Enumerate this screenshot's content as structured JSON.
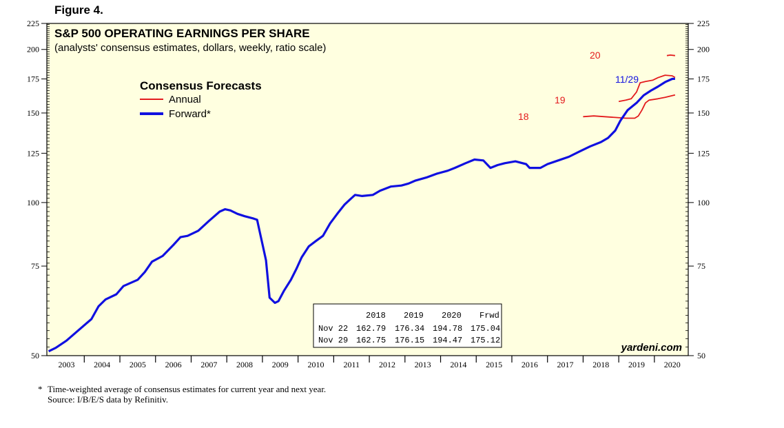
{
  "figure_label": "Figure 4.",
  "footnote": {
    "star_line": "Time-weighted average of consensus estimates for current year and next year.",
    "star": "*",
    "source": "Source: I/B/E/S data by Refinitiv."
  },
  "brand": "yardeni.com",
  "colors": {
    "annual": "#e31a1c",
    "forward": "#1010e0",
    "plot_bg": "#ffffe0"
  },
  "chart_data": {
    "type": "line",
    "title": "S&P 500 OPERATING EARNINGS PER SHARE",
    "subtitle": "(analysts' consensus estimates, dollars, weekly, ratio scale)",
    "y_scale": "log",
    "ylim": [
      50,
      225
    ],
    "y_ticks": [
      50,
      75,
      100,
      125,
      150,
      175,
      200,
      225
    ],
    "xlim": [
      2002.95,
      2020.95
    ],
    "x_tick_labels": [
      "2003",
      "2004",
      "2005",
      "2006",
      "2007",
      "2008",
      "2009",
      "2010",
      "2011",
      "2012",
      "2013",
      "2014",
      "2015",
      "2016",
      "2017",
      "2018",
      "2019",
      "2020"
    ],
    "legend": {
      "title": "Consensus Forecasts",
      "position": "top-left",
      "entries": [
        "Annual",
        "Forward*"
      ]
    },
    "series": [
      {
        "name": "Forward*",
        "color": "#1010e0",
        "points": [
          [
            2003.0,
            51.0
          ],
          [
            2003.2,
            51.8
          ],
          [
            2003.5,
            53.5
          ],
          [
            2003.8,
            55.8
          ],
          [
            2004.2,
            59
          ],
          [
            2004.4,
            62.5
          ],
          [
            2004.6,
            64.5
          ],
          [
            2004.9,
            66
          ],
          [
            2005.1,
            68.5
          ],
          [
            2005.5,
            70.5
          ],
          [
            2005.7,
            73
          ],
          [
            2005.9,
            76.5
          ],
          [
            2006.2,
            78.5
          ],
          [
            2006.5,
            82.5
          ],
          [
            2006.7,
            85.5
          ],
          [
            2006.9,
            86
          ],
          [
            2007.2,
            88
          ],
          [
            2007.5,
            92
          ],
          [
            2007.8,
            96
          ],
          [
            2007.95,
            97
          ],
          [
            2008.1,
            96.5
          ],
          [
            2008.3,
            95
          ],
          [
            2008.5,
            94
          ],
          [
            2008.75,
            93
          ],
          [
            2008.85,
            92.5
          ],
          [
            2008.95,
            86
          ],
          [
            2009.1,
            77
          ],
          [
            2009.2,
            65
          ],
          [
            2009.35,
            63.5
          ],
          [
            2009.45,
            64
          ],
          [
            2009.6,
            67
          ],
          [
            2009.8,
            70.5
          ],
          [
            2009.95,
            74
          ],
          [
            2010.1,
            78
          ],
          [
            2010.3,
            82
          ],
          [
            2010.5,
            84
          ],
          [
            2010.7,
            86
          ],
          [
            2010.9,
            91
          ],
          [
            2011.1,
            95
          ],
          [
            2011.3,
            99
          ],
          [
            2011.5,
            102
          ],
          [
            2011.6,
            103.5
          ],
          [
            2011.8,
            103
          ],
          [
            2012.1,
            103.5
          ],
          [
            2012.3,
            105.5
          ],
          [
            2012.6,
            107.5
          ],
          [
            2012.9,
            108
          ],
          [
            2013.1,
            109
          ],
          [
            2013.3,
            110.5
          ],
          [
            2013.6,
            112
          ],
          [
            2013.9,
            114
          ],
          [
            2014.2,
            115.5
          ],
          [
            2014.4,
            117
          ],
          [
            2014.7,
            119.5
          ],
          [
            2014.95,
            121.5
          ],
          [
            2015.2,
            121
          ],
          [
            2015.4,
            117
          ],
          [
            2015.6,
            118.5
          ],
          [
            2015.8,
            119.5
          ],
          [
            2016.1,
            120.5
          ],
          [
            2016.4,
            119
          ],
          [
            2016.5,
            117
          ],
          [
            2016.8,
            117
          ],
          [
            2017.0,
            119
          ],
          [
            2017.3,
            121
          ],
          [
            2017.6,
            123
          ],
          [
            2017.9,
            126
          ],
          [
            2018.2,
            129
          ],
          [
            2018.5,
            131.5
          ],
          [
            2018.7,
            134
          ],
          [
            2018.9,
            138.5
          ],
          [
            2019.05,
            145
          ],
          [
            2019.25,
            152
          ],
          [
            2019.5,
            157
          ],
          [
            2019.7,
            162.5
          ],
          [
            2019.9,
            166
          ],
          [
            2020.1,
            169
          ],
          [
            2020.3,
            172.5
          ],
          [
            2020.5,
            175
          ],
          [
            2020.58,
            175.12
          ]
        ]
      },
      {
        "name": "Annual",
        "color": "#e31a1c",
        "segments": [
          {
            "label": "18",
            "points": [
              [
                2018.0,
                147.5
              ],
              [
                2018.3,
                148
              ],
              [
                2018.6,
                147.5
              ],
              [
                2018.9,
                147
              ],
              [
                2019.2,
                146.5
              ],
              [
                2019.45,
                146.5
              ],
              [
                2019.55,
                148
              ],
              [
                2019.65,
                152
              ],
              [
                2019.75,
                157
              ],
              [
                2019.85,
                159
              ],
              [
                2020.1,
                160
              ],
              [
                2020.3,
                161
              ],
              [
                2020.58,
                162.75
              ]
            ]
          },
          {
            "label": "19",
            "points": [
              [
                2019.0,
                158
              ],
              [
                2019.2,
                159
              ],
              [
                2019.35,
                160
              ],
              [
                2019.5,
                165
              ],
              [
                2019.6,
                172
              ],
              [
                2019.75,
                173
              ],
              [
                2019.95,
                174
              ],
              [
                2020.1,
                176
              ],
              [
                2020.3,
                178
              ],
              [
                2020.5,
                177.5
              ],
              [
                2020.58,
                176.15
              ]
            ]
          },
          {
            "label": "20",
            "points": [
              [
                2020.35,
                194.5
              ],
              [
                2020.45,
                195
              ],
              [
                2020.58,
                194.47
              ]
            ]
          }
        ]
      }
    ],
    "annotations": [
      {
        "text": "18",
        "color": "#e31a1c"
      },
      {
        "text": "19",
        "color": "#e31a1c"
      },
      {
        "text": "20",
        "color": "#e31a1c"
      },
      {
        "text": "11/29",
        "color": "#1010e0"
      }
    ],
    "table": {
      "header": [
        "",
        "2018",
        "2019",
        "2020",
        "Frwd"
      ],
      "rows": [
        [
          "Nov 22",
          "162.79",
          "176.34",
          "194.78",
          "175.04"
        ],
        [
          "Nov 29",
          "162.75",
          "176.15",
          "194.47",
          "175.12"
        ]
      ]
    }
  }
}
